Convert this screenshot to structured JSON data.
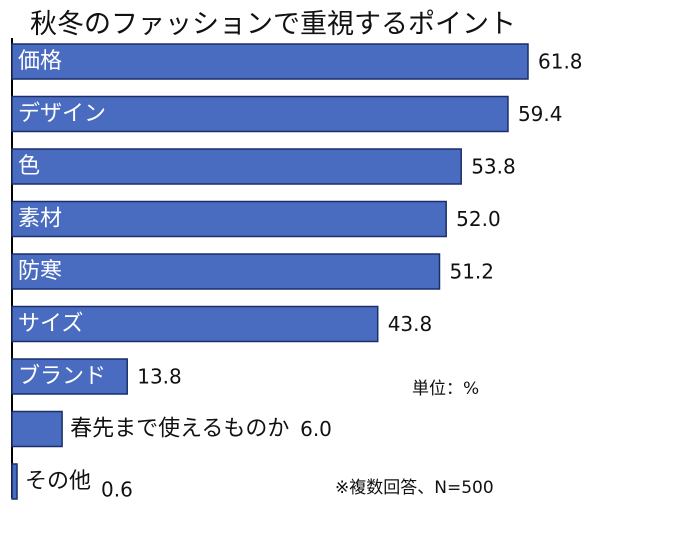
{
  "chart_data": {
    "type": "bar",
    "orientation": "horizontal",
    "title": "秋冬のファッションで重視するポイント",
    "categories": [
      "価格",
      "デザイン",
      "色",
      "素材",
      "防寒",
      "サイズ",
      "ブランド",
      "春先まで使えるものか",
      "その他"
    ],
    "values": [
      61.8,
      59.4,
      53.8,
      52.0,
      51.2,
      43.8,
      13.8,
      6.0,
      0.6
    ],
    "value_labels": [
      "61.8",
      "59.4",
      "53.8",
      "52.0",
      "51.2",
      "43.8",
      "13.8",
      "6.0",
      "0.6"
    ],
    "unit_note": "単位：%",
    "footnote": "※複数回答、N=500",
    "bar_color": "#4a6cc0",
    "bar_border_color": "#1a2f6a",
    "xlim": [
      0,
      61.8
    ],
    "grid": false,
    "legend": "none"
  }
}
